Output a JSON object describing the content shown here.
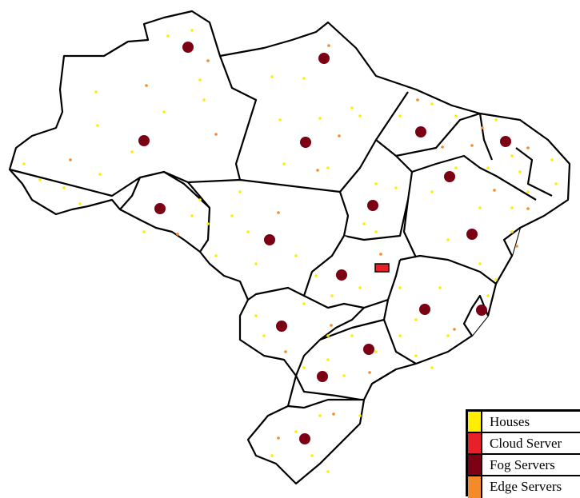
{
  "colors": {
    "house": "#ffee00",
    "cloud": "#e8202a",
    "fog": "#7b0014",
    "edge": "#f58a2a",
    "border": "#000000"
  },
  "legend": {
    "items": [
      {
        "label": "Houses",
        "color": "#ffee00"
      },
      {
        "label": "Cloud Server",
        "color": "#e8202a"
      },
      {
        "label": "Fog Servers",
        "color": "#7b0014"
      },
      {
        "label": "Edge Servers",
        "color": "#f58a2a"
      }
    ]
  }
}
